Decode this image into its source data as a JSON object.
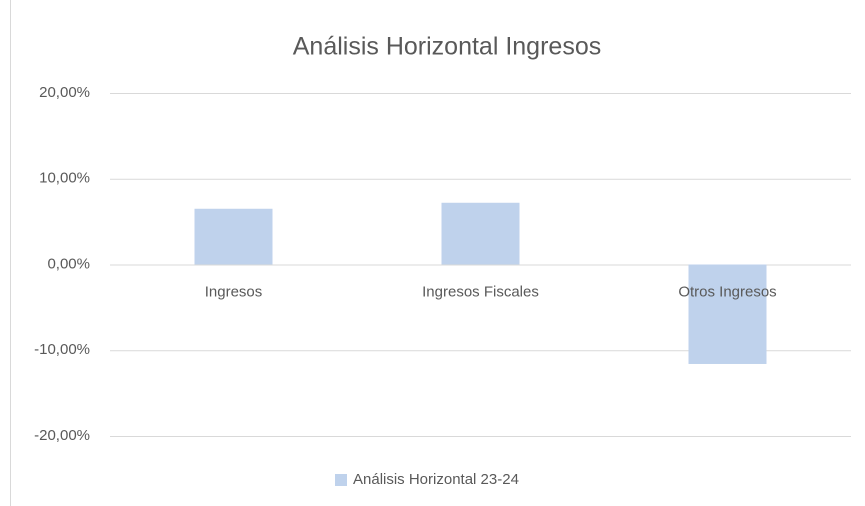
{
  "chart_data": {
    "type": "bar",
    "title": "Análisis Horizontal Ingresos",
    "categories": [
      "Ingresos",
      "Ingresos Fiscales",
      "Otros Ingresos"
    ],
    "series": [
      {
        "name": "Análisis Horizontal 23-24",
        "color": "#bfd2ec",
        "values": [
          6.5,
          7.2,
          -11.6
        ]
      }
    ],
    "ylim": [
      -20,
      20
    ],
    "yticks": [
      {
        "value": -20,
        "label": "-20,00%"
      },
      {
        "value": -10,
        "label": "-10,00%"
      },
      {
        "value": 0,
        "label": "0,00%"
      },
      {
        "value": 10,
        "label": "10,00%"
      },
      {
        "value": 20,
        "label": "20,00%"
      }
    ],
    "grid": true,
    "legend": "bottom"
  }
}
